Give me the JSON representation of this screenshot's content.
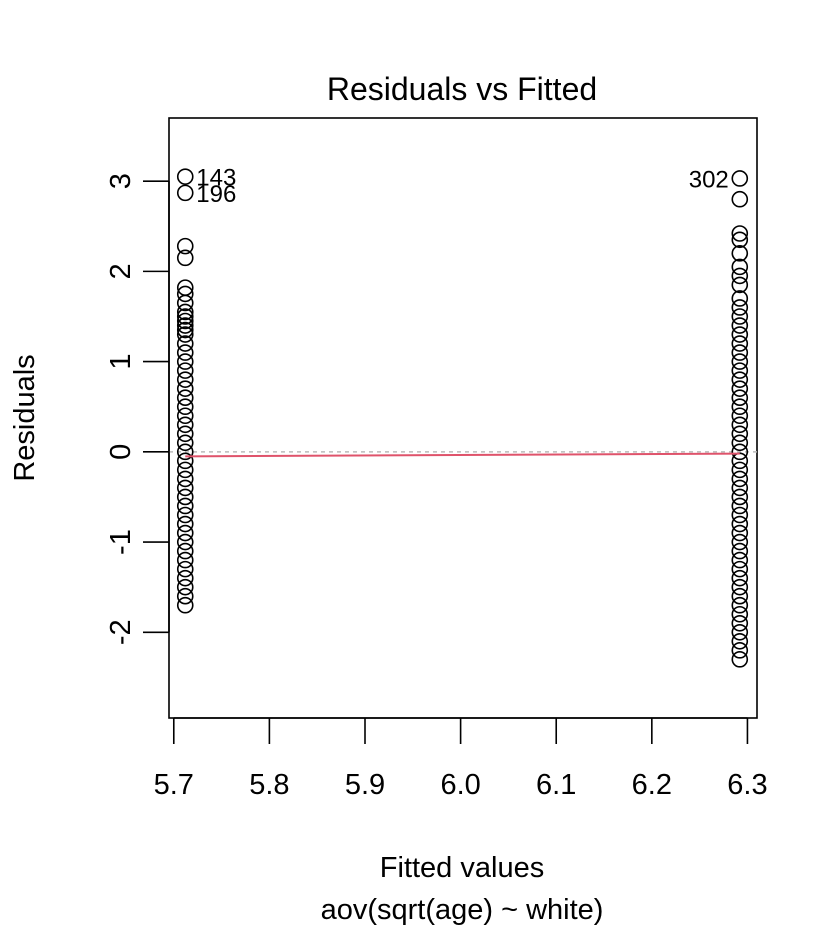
{
  "chart_data": {
    "type": "scatter",
    "title": "Residuals vs Fitted",
    "xlabel": "Fitted values",
    "subtitle": "aov(sqrt(age) ~ white)",
    "ylabel": "Residuals",
    "xlim": [
      5.695,
      6.31
    ],
    "ylim": [
      -2.95,
      3.7
    ],
    "x_ticks": [
      "5.7",
      "5.8",
      "5.9",
      "6.0",
      "6.1",
      "6.2",
      "6.3"
    ],
    "y_ticks": [
      "-2",
      "-1",
      "0",
      "1",
      "2",
      "3"
    ],
    "zero_line_color": "#bbbbbb",
    "smooth_line_color": "#df536b",
    "smooth_line": [
      [
        5.712,
        -0.05
      ],
      [
        6.292,
        -0.02
      ]
    ],
    "groups": [
      {
        "x": 5.712,
        "residuals": [
          3.05,
          2.87,
          2.28,
          2.15,
          1.82,
          1.75,
          1.65,
          1.55,
          1.5,
          1.45,
          1.4,
          1.35,
          1.3,
          1.2,
          1.1,
          1.0,
          0.9,
          0.8,
          0.7,
          0.6,
          0.5,
          0.4,
          0.3,
          0.2,
          0.1,
          0.0,
          -0.1,
          -0.2,
          -0.3,
          -0.4,
          -0.5,
          -0.6,
          -0.7,
          -0.8,
          -0.9,
          -1.0,
          -1.1,
          -1.2,
          -1.3,
          -1.4,
          -1.5,
          -1.6,
          -1.7
        ]
      },
      {
        "x": 6.292,
        "residuals": [
          3.03,
          2.8,
          2.42,
          2.35,
          2.2,
          2.05,
          1.95,
          1.85,
          1.7,
          1.6,
          1.5,
          1.4,
          1.3,
          1.2,
          1.1,
          1.0,
          0.9,
          0.8,
          0.7,
          0.6,
          0.5,
          0.4,
          0.3,
          0.2,
          0.1,
          0.0,
          -0.1,
          -0.2,
          -0.3,
          -0.4,
          -0.5,
          -0.6,
          -0.7,
          -0.8,
          -0.9,
          -1.0,
          -1.1,
          -1.2,
          -1.3,
          -1.4,
          -1.5,
          -1.6,
          -1.7,
          -1.8,
          -1.9,
          -2.0,
          -2.1,
          -2.2,
          -2.3
        ]
      }
    ],
    "point_labels": [
      {
        "text": "143",
        "x": 5.712,
        "y": 3.05,
        "side": "right"
      },
      {
        "text": "196",
        "x": 5.712,
        "y": 2.87,
        "side": "right"
      },
      {
        "text": "302",
        "x": 6.292,
        "y": 3.03,
        "side": "left"
      }
    ]
  }
}
